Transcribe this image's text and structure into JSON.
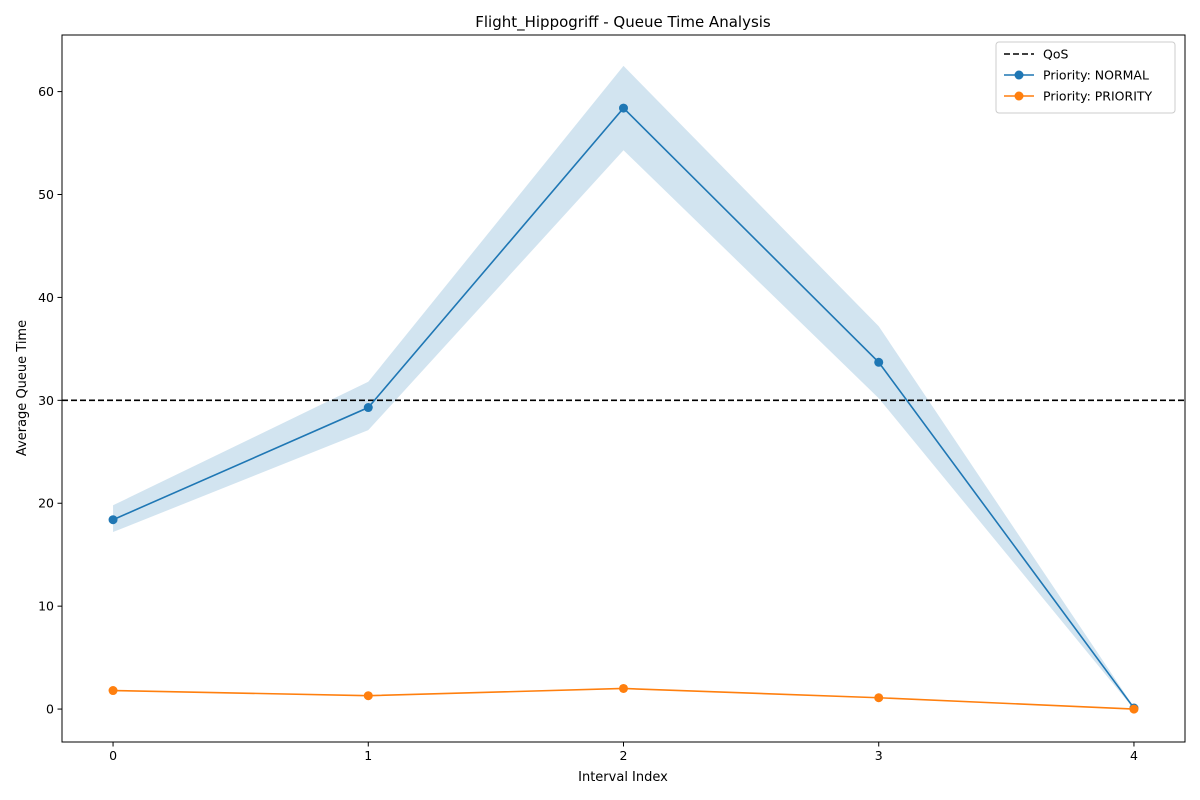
{
  "chart_data": {
    "type": "line",
    "title": "Flight_Hippogriff - Queue Time Analysis",
    "xlabel": "Interval Index",
    "ylabel": "Average Queue Time",
    "x": [
      0,
      1,
      2,
      3,
      4
    ],
    "xlim": [
      -0.2,
      4.2
    ],
    "ylim": [
      -3.2,
      65.5
    ],
    "xticks": [
      0,
      1,
      2,
      3,
      4
    ],
    "yticks": [
      0,
      10,
      20,
      30,
      40,
      50,
      60
    ],
    "grid": false,
    "legend_position": "top-right",
    "reference_line": {
      "name": "QoS",
      "value": 30,
      "color": "#000000",
      "style": "dashed"
    },
    "series": [
      {
        "name": "Priority: NORMAL",
        "color": "#1f77b4",
        "values": [
          18.4,
          29.3,
          58.4,
          33.7,
          0.1
        ],
        "band_lower": [
          17.2,
          27.1,
          54.3,
          30.2,
          0.0
        ],
        "band_upper": [
          19.8,
          31.8,
          62.5,
          37.2,
          0.2
        ]
      },
      {
        "name": "Priority: PRIORITY",
        "color": "#ff7f0e",
        "values": [
          1.8,
          1.3,
          2.0,
          1.1,
          0.0
        ]
      }
    ]
  }
}
